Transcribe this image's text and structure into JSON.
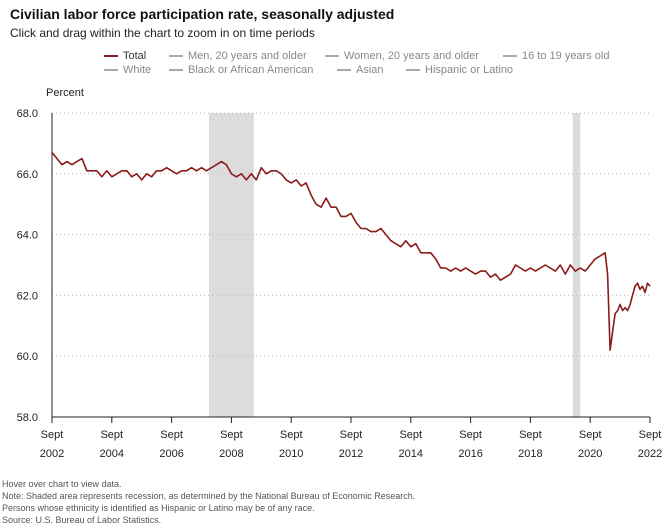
{
  "header": {
    "title": "Civilian labor force participation rate, seasonally adjusted",
    "subtitle": "Click and drag within the chart to zoom in on time periods"
  },
  "legend": [
    {
      "label": "Total",
      "active": true
    },
    {
      "label": "Men, 20 years and older",
      "active": false
    },
    {
      "label": "Women, 20 years and older",
      "active": false
    },
    {
      "label": "16 to 19 years old",
      "active": false
    },
    {
      "label": "White",
      "active": false
    },
    {
      "label": "Black or African American",
      "active": false
    },
    {
      "label": "Asian",
      "active": false
    },
    {
      "label": "Hispanic or Latino",
      "active": false
    }
  ],
  "notes": {
    "hover": "Hover over chart to view data.",
    "recession": "Note: Shaded area represents recession, as determined by the National Bureau of Economic Research.",
    "ethnicity": "Persons whose ethnicity is identified as Hispanic or Latino may be of any race.",
    "source": "Source: U.S. Bureau of Labor Statistics."
  },
  "colors": {
    "series": "#8b1a1a",
    "recession": "#dcdcdc",
    "grid": "#bbbbbb",
    "axis": "#222222"
  },
  "chart_data": {
    "type": "line",
    "title": "Civilian labor force participation rate, seasonally adjusted",
    "ylabel": "Percent",
    "xlabel": "",
    "ylim": [
      58.0,
      68.0
    ],
    "xlim": [
      2002.667,
      2022.667
    ],
    "y_ticks": [
      "58.0",
      "60.0",
      "62.0",
      "64.0",
      "66.0",
      "68.0"
    ],
    "y_tick_values": [
      58,
      60,
      62,
      64,
      66,
      68
    ],
    "x_ticks": [
      {
        "month": "Sept",
        "year": "2002",
        "value": 2002.667
      },
      {
        "month": "Sept",
        "year": "2004",
        "value": 2004.667
      },
      {
        "month": "Sept",
        "year": "2006",
        "value": 2006.667
      },
      {
        "month": "Sept",
        "year": "2008",
        "value": 2008.667
      },
      {
        "month": "Sept",
        "year": "2010",
        "value": 2010.667
      },
      {
        "month": "Sept",
        "year": "2012",
        "value": 2012.667
      },
      {
        "month": "Sept",
        "year": "2014",
        "value": 2014.667
      },
      {
        "month": "Sept",
        "year": "2016",
        "value": 2016.667
      },
      {
        "month": "Sept",
        "year": "2018",
        "value": 2018.667
      },
      {
        "month": "Sept",
        "year": "2020",
        "value": 2020.667
      },
      {
        "month": "Sept",
        "year": "2022",
        "value": 2022.667
      }
    ],
    "grid": true,
    "recessions": [
      [
        2007.917,
        2009.417
      ],
      [
        2020.083,
        2020.333
      ]
    ],
    "series": [
      {
        "name": "Total",
        "points": [
          [
            2002.667,
            66.7
          ],
          [
            2002.833,
            66.5
          ],
          [
            2003.0,
            66.3
          ],
          [
            2003.167,
            66.4
          ],
          [
            2003.333,
            66.3
          ],
          [
            2003.5,
            66.4
          ],
          [
            2003.667,
            66.5
          ],
          [
            2003.833,
            66.1
          ],
          [
            2004.0,
            66.1
          ],
          [
            2004.167,
            66.1
          ],
          [
            2004.333,
            65.9
          ],
          [
            2004.5,
            66.1
          ],
          [
            2004.667,
            65.9
          ],
          [
            2004.833,
            66.0
          ],
          [
            2005.0,
            66.1
          ],
          [
            2005.167,
            66.1
          ],
          [
            2005.333,
            65.9
          ],
          [
            2005.5,
            66.0
          ],
          [
            2005.667,
            65.8
          ],
          [
            2005.833,
            66.0
          ],
          [
            2006.0,
            65.9
          ],
          [
            2006.167,
            66.1
          ],
          [
            2006.333,
            66.1
          ],
          [
            2006.5,
            66.2
          ],
          [
            2006.667,
            66.1
          ],
          [
            2006.833,
            66.0
          ],
          [
            2007.0,
            66.1
          ],
          [
            2007.167,
            66.1
          ],
          [
            2007.333,
            66.2
          ],
          [
            2007.5,
            66.1
          ],
          [
            2007.667,
            66.2
          ],
          [
            2007.833,
            66.1
          ],
          [
            2008.0,
            66.2
          ],
          [
            2008.167,
            66.3
          ],
          [
            2008.333,
            66.4
          ],
          [
            2008.5,
            66.3
          ],
          [
            2008.667,
            66.0
          ],
          [
            2008.833,
            65.9
          ],
          [
            2009.0,
            66.0
          ],
          [
            2009.167,
            65.8
          ],
          [
            2009.333,
            66.0
          ],
          [
            2009.5,
            65.8
          ],
          [
            2009.667,
            66.2
          ],
          [
            2009.833,
            66.0
          ],
          [
            2010.0,
            66.1
          ],
          [
            2010.167,
            66.1
          ],
          [
            2010.333,
            66.0
          ],
          [
            2010.5,
            65.8
          ],
          [
            2010.667,
            65.7
          ],
          [
            2010.833,
            65.8
          ],
          [
            2011.0,
            65.6
          ],
          [
            2011.167,
            65.7
          ],
          [
            2011.333,
            65.3
          ],
          [
            2011.5,
            65.0
          ],
          [
            2011.667,
            64.9
          ],
          [
            2011.833,
            65.2
          ],
          [
            2012.0,
            64.9
          ],
          [
            2012.167,
            64.9
          ],
          [
            2012.333,
            64.6
          ],
          [
            2012.5,
            64.6
          ],
          [
            2012.667,
            64.7
          ],
          [
            2012.833,
            64.4
          ],
          [
            2013.0,
            64.2
          ],
          [
            2013.167,
            64.2
          ],
          [
            2013.333,
            64.1
          ],
          [
            2013.5,
            64.1
          ],
          [
            2013.667,
            64.2
          ],
          [
            2013.833,
            64.0
          ],
          [
            2014.0,
            63.8
          ],
          [
            2014.167,
            63.7
          ],
          [
            2014.333,
            63.6
          ],
          [
            2014.5,
            63.8
          ],
          [
            2014.667,
            63.6
          ],
          [
            2014.833,
            63.7
          ],
          [
            2015.0,
            63.4
          ],
          [
            2015.167,
            63.4
          ],
          [
            2015.333,
            63.4
          ],
          [
            2015.5,
            63.2
          ],
          [
            2015.667,
            62.9
          ],
          [
            2015.833,
            62.9
          ],
          [
            2016.0,
            62.8
          ],
          [
            2016.167,
            62.9
          ],
          [
            2016.333,
            62.8
          ],
          [
            2016.5,
            62.9
          ],
          [
            2016.667,
            62.8
          ],
          [
            2016.833,
            62.7
          ],
          [
            2017.0,
            62.8
          ],
          [
            2017.167,
            62.8
          ],
          [
            2017.333,
            62.6
          ],
          [
            2017.5,
            62.7
          ],
          [
            2017.667,
            62.5
          ],
          [
            2017.833,
            62.6
          ],
          [
            2018.0,
            62.7
          ],
          [
            2018.167,
            63.0
          ],
          [
            2018.333,
            62.9
          ],
          [
            2018.5,
            62.8
          ],
          [
            2018.667,
            62.9
          ],
          [
            2018.833,
            62.8
          ],
          [
            2019.0,
            62.9
          ],
          [
            2019.167,
            63.0
          ],
          [
            2019.333,
            62.9
          ],
          [
            2019.5,
            62.8
          ],
          [
            2019.667,
            63.0
          ],
          [
            2019.833,
            62.7
          ],
          [
            2020.0,
            63.0
          ],
          [
            2020.167,
            62.8
          ],
          [
            2020.333,
            62.9
          ],
          [
            2020.5,
            62.8
          ],
          [
            2020.667,
            63.0
          ],
          [
            2020.833,
            63.2
          ],
          [
            2021.0,
            63.3
          ],
          [
            2021.167,
            63.4
          ],
          [
            2021.25,
            62.7
          ],
          [
            2021.333,
            60.2
          ],
          [
            2021.417,
            60.8
          ],
          [
            2021.5,
            61.4
          ],
          [
            2021.583,
            61.5
          ],
          [
            2021.667,
            61.7
          ],
          [
            2021.75,
            61.5
          ],
          [
            2021.833,
            61.6
          ],
          [
            2021.917,
            61.5
          ],
          [
            2022.0,
            61.7
          ],
          [
            2022.083,
            62.0
          ],
          [
            2022.167,
            62.3
          ],
          [
            2022.25,
            62.4
          ],
          [
            2022.333,
            62.2
          ],
          [
            2022.417,
            62.3
          ],
          [
            2022.5,
            62.1
          ],
          [
            2022.583,
            62.4
          ],
          [
            2022.667,
            62.3
          ]
        ]
      }
    ]
  }
}
